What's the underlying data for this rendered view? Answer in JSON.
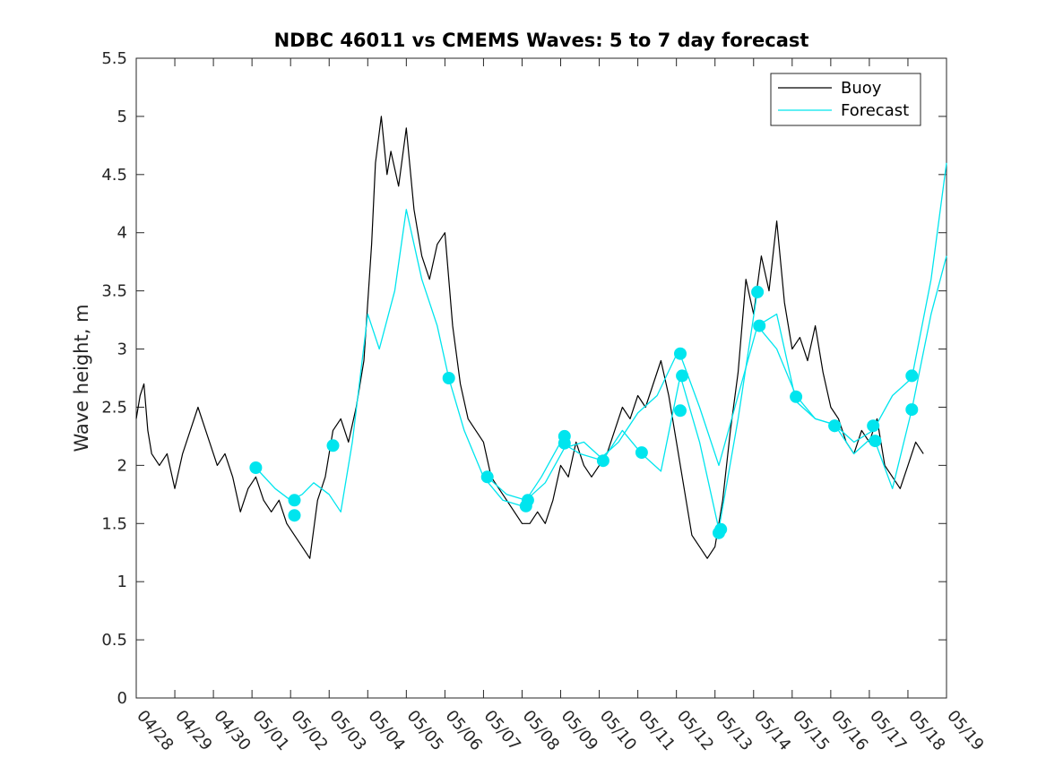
{
  "chart_data": {
    "type": "line",
    "title": "NDBC 46011 vs CMEMS Waves: 5 to 7 day forecast",
    "xlabel": "",
    "ylabel": "Wave height, m",
    "ylim": [
      0,
      5.5
    ],
    "yticks": [
      "0",
      "0.5",
      "1",
      "1.5",
      "2",
      "2.5",
      "3",
      "3.5",
      "4",
      "4.5",
      "5",
      "5.5"
    ],
    "xticks": [
      "04/28",
      "04/29",
      "04/30",
      "05/01",
      "05/02",
      "05/03",
      "05/04",
      "05/05",
      "05/06",
      "05/07",
      "05/08",
      "05/09",
      "05/10",
      "05/11",
      "05/12",
      "05/13",
      "05/14",
      "05/15",
      "05/16",
      "05/17",
      "05/18",
      "05/19"
    ],
    "xlim_days": [
      0,
      21
    ],
    "grid": false,
    "legend": {
      "placement": "top-right",
      "entries": [
        "Buoy",
        "Forecast"
      ]
    },
    "colors": {
      "buoy": "#000000",
      "forecast": "#00e5ee",
      "axis": "#262626"
    },
    "series": [
      {
        "name": "Buoy",
        "x": [
          0,
          0.1,
          0.2,
          0.3,
          0.4,
          0.6,
          0.8,
          1.0,
          1.2,
          1.4,
          1.6,
          1.8,
          1.9,
          2.1,
          2.3,
          2.5,
          2.7,
          2.9,
          3.1,
          3.3,
          3.5,
          3.7,
          3.9,
          4.1,
          4.3,
          4.5,
          4.7,
          4.9,
          5.1,
          5.3,
          5.5,
          5.7,
          5.9,
          6.1,
          6.2,
          6.35,
          6.5,
          6.6,
          6.8,
          7.0,
          7.2,
          7.4,
          7.6,
          7.8,
          8.0,
          8.2,
          8.4,
          8.6,
          8.8,
          9.0,
          9.2,
          9.4,
          9.6,
          9.8,
          10.0,
          10.2,
          10.4,
          10.6,
          10.8,
          11.0,
          11.2,
          11.4,
          11.6,
          11.8,
          12.0,
          12.2,
          12.4,
          12.6,
          12.8,
          13.0,
          13.2,
          13.4,
          13.6,
          13.8,
          14.0,
          14.2,
          14.4,
          14.6,
          14.8,
          15.0,
          15.2,
          15.4,
          15.6,
          15.8,
          16.0,
          16.2,
          16.4,
          16.6,
          16.8,
          17.0,
          17.2,
          17.4,
          17.6,
          17.8,
          18.0,
          18.2,
          18.4,
          18.6,
          18.8,
          19.0,
          19.2,
          19.4,
          19.6,
          19.8,
          20.0,
          20.2,
          20.4
        ],
        "y": [
          2.4,
          2.6,
          2.7,
          2.3,
          2.1,
          2.0,
          2.1,
          1.8,
          2.1,
          2.3,
          2.5,
          2.3,
          2.2,
          2.0,
          2.1,
          1.9,
          1.6,
          1.8,
          1.9,
          1.7,
          1.6,
          1.7,
          1.5,
          1.4,
          1.3,
          1.2,
          1.7,
          1.9,
          2.3,
          2.4,
          2.2,
          2.5,
          2.9,
          3.9,
          4.6,
          5.0,
          4.5,
          4.7,
          4.4,
          4.9,
          4.2,
          3.8,
          3.6,
          3.9,
          4.0,
          3.2,
          2.7,
          2.4,
          2.3,
          2.2,
          1.9,
          1.8,
          1.7,
          1.6,
          1.5,
          1.5,
          1.6,
          1.5,
          1.7,
          2.0,
          1.9,
          2.2,
          2.0,
          1.9,
          2.0,
          2.1,
          2.3,
          2.5,
          2.4,
          2.6,
          2.5,
          2.7,
          2.9,
          2.6,
          2.2,
          1.8,
          1.4,
          1.3,
          1.2,
          1.3,
          1.7,
          2.3,
          2.8,
          3.6,
          3.3,
          3.8,
          3.5,
          4.1,
          3.4,
          3.0,
          3.1,
          2.9,
          3.2,
          2.8,
          2.5,
          2.4,
          2.2,
          2.1,
          2.3,
          2.2,
          2.4,
          2.0,
          1.9,
          1.8,
          2.0,
          2.2,
          2.1
        ]
      },
      {
        "name": "Forecast",
        "x": [
          3.1,
          3.6,
          4.0,
          4.3,
          4.6,
          5.0,
          5.3,
          5.6,
          6.0,
          6.3,
          6.7,
          7.0,
          7.4,
          7.8,
          8.1
        ],
        "y": [
          1.98,
          1.8,
          1.7,
          1.75,
          1.85,
          1.75,
          1.6,
          2.2,
          3.3,
          3.0,
          3.5,
          4.2,
          3.6,
          3.2,
          2.75
        ]
      },
      {
        "name": "",
        "x": [
          8.1,
          8.5,
          9.0,
          9.5,
          10.0,
          10.5,
          11.0,
          11.5,
          12.0,
          12.5,
          13.0,
          13.5,
          14.0
        ],
        "y": [
          2.75,
          2.3,
          1.9,
          1.7,
          1.65,
          1.9,
          2.2,
          2.1,
          2.05,
          2.2,
          2.45,
          2.6,
          2.95
        ]
      },
      {
        "name": "",
        "x": [
          9.1,
          9.6,
          10.1,
          10.6,
          11.1,
          11.6,
          12.1,
          12.6,
          13.1,
          13.6,
          14.1,
          14.6,
          15.1,
          15.6,
          16.1
        ],
        "y": [
          1.9,
          1.75,
          1.7,
          1.85,
          2.15,
          2.2,
          2.05,
          2.3,
          2.1,
          1.95,
          2.77,
          2.2,
          1.45,
          2.4,
          3.5
        ]
      },
      {
        "name": "",
        "x": [
          14.1,
          14.6,
          15.1,
          15.6,
          16.1,
          16.6,
          17.1,
          17.6,
          18.1,
          18.6,
          19.1,
          19.6,
          20.1,
          20.6,
          21.0
        ],
        "y": [
          2.95,
          2.5,
          2.0,
          2.6,
          3.2,
          3.0,
          2.6,
          2.4,
          2.35,
          2.2,
          2.3,
          2.6,
          2.75,
          3.6,
          4.6
        ]
      },
      {
        "name": "",
        "x": [
          16.1,
          16.6,
          17.1,
          17.6,
          18.1,
          18.6,
          19.1,
          19.6,
          20.1,
          20.6,
          21.0
        ],
        "y": [
          3.2,
          3.3,
          2.55,
          2.4,
          2.35,
          2.1,
          2.25,
          1.8,
          2.48,
          3.3,
          3.8
        ]
      }
    ],
    "markers": {
      "series": "Forecast",
      "x": [
        3.1,
        4.1,
        4.1,
        5.1,
        8.1,
        9.1,
        10.1,
        10.15,
        11.1,
        11.1,
        12.1,
        13.1,
        14.1,
        14.1,
        14.15,
        15.1,
        15.15,
        16.1,
        16.15,
        17.1,
        18.1,
        18.1,
        19.1,
        19.15,
        20.1,
        20.1
      ],
      "y": [
        1.98,
        1.7,
        1.57,
        2.17,
        2.75,
        1.9,
        1.65,
        1.7,
        2.25,
        2.19,
        2.04,
        2.11,
        2.47,
        2.96,
        2.77,
        1.42,
        1.45,
        3.49,
        3.2,
        2.59,
        2.34,
        2.34,
        2.34,
        2.21,
        2.77,
        2.48
      ]
    }
  }
}
